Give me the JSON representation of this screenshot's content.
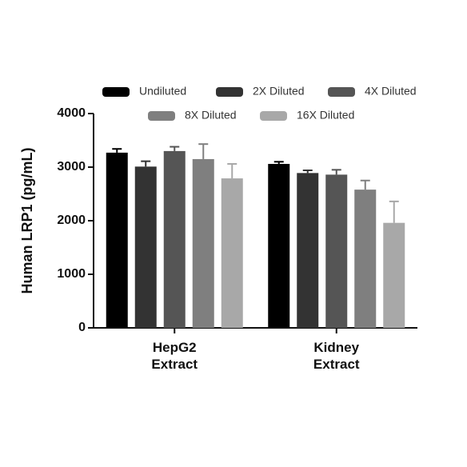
{
  "chart_data": {
    "type": "bar",
    "y_label": "Human LRP1 (pg/mL)",
    "categories": [
      "HepG2 Extract",
      "Kidney Extract"
    ],
    "series": [
      {
        "name": "Undiluted",
        "color": "#000000",
        "values": [
          3270,
          3060
        ],
        "errors": [
          70,
          40
        ]
      },
      {
        "name": "2X Diluted",
        "color": "#333333",
        "values": [
          3010,
          2890
        ],
        "errors": [
          100,
          50
        ]
      },
      {
        "name": "4X Diluted",
        "color": "#555555",
        "values": [
          3300,
          2860
        ],
        "errors": [
          80,
          90
        ]
      },
      {
        "name": "8X Diluted",
        "color": "#7f7f7f",
        "values": [
          3150,
          2580
        ],
        "errors": [
          280,
          170
        ]
      },
      {
        "name": "16X Diluted",
        "color": "#a8a8a8",
        "values": [
          2790,
          1960
        ],
        "errors": [
          270,
          400
        ]
      }
    ],
    "ylim": [
      0,
      4000
    ],
    "yticks": [
      0,
      1000,
      2000,
      3000,
      4000
    ]
  }
}
